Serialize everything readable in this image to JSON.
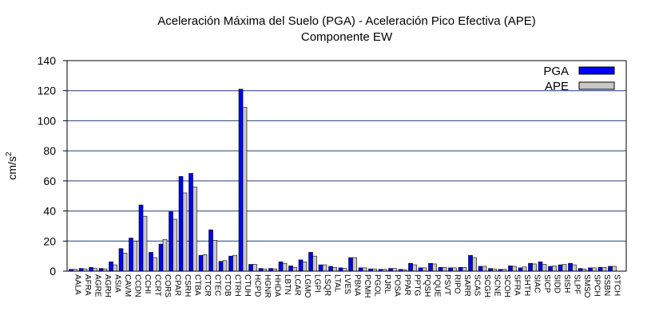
{
  "chart_data": {
    "type": "bar",
    "title": "Aceleración Máxima del Suelo (PGA) -  Aceleración Pico Efectiva (APE)",
    "subtitle": "Componente EW",
    "xlabel": "",
    "ylabel": "cm/s",
    "ylabel_superscript": "2",
    "ylim": [
      0,
      140
    ],
    "yticks": [
      0,
      20,
      40,
      60,
      80,
      100,
      120,
      140
    ],
    "grid": "horizontal",
    "legend_position": "top-right",
    "categories": [
      "AALA",
      "AFRA",
      "AGRE",
      "AGRH",
      "ASIA",
      "CAVM",
      "CCDN",
      "CCHI",
      "CCRT",
      "CORS",
      "CPAR",
      "CSRH",
      "CTBA",
      "CTCR",
      "CTEC",
      "CTOB",
      "CTRH",
      "CTUH",
      "HCPD",
      "HGNR",
      "HHDA",
      "LBTN",
      "LCAR",
      "LGMO",
      "LGPI",
      "LSQR",
      "LTAL",
      "LVES",
      "PBNA",
      "PCMH",
      "PGOL",
      "PJRL",
      "POSA",
      "PPAR",
      "PPTG",
      "PQSH",
      "PQUE",
      "PSVT",
      "RIPO",
      "SARR",
      "SCAS",
      "SCGH",
      "SCNE",
      "SCOH",
      "SFRA",
      "SHTH",
      "SIAC",
      "SICP",
      "SIDD",
      "SISH",
      "SLPF",
      "SMSO",
      "SPCH",
      "SSBN",
      "STCH"
    ],
    "series": [
      {
        "name": "PGA",
        "color": "#0000ff",
        "values": [
          1.2,
          1.8,
          2.5,
          1.8,
          6.2,
          15,
          22,
          44,
          12.5,
          18,
          39.5,
          63,
          65,
          10.5,
          27.5,
          6.5,
          10,
          121,
          4.5,
          1.8,
          1.8,
          6.2,
          3.5,
          7.5,
          12.5,
          4.2,
          3.2,
          2.2,
          9,
          2.2,
          1.5,
          1.2,
          1.8,
          1.2,
          5.2,
          2.2,
          5.2,
          2.5,
          2.2,
          2.5,
          10.5,
          3.2,
          1.8,
          1.2,
          3.5,
          2.2,
          5.2,
          6.2,
          3.2,
          4.2,
          5.2,
          1.8,
          2.2,
          2.5,
          3.2
        ]
      },
      {
        "name": "APE",
        "color": "#c8c8c8",
        "values": [
          1.2,
          1.5,
          1.8,
          1.5,
          4.2,
          12,
          20,
          36.5,
          9,
          21,
          34.5,
          52,
          56,
          11,
          20.5,
          7,
          10.5,
          109,
          4.5,
          1.5,
          1.5,
          5.2,
          2.5,
          6.2,
          10,
          4.2,
          2.5,
          1.8,
          9,
          2.2,
          1.5,
          1.2,
          1.8,
          1,
          4.2,
          2.2,
          4.8,
          2.5,
          2.2,
          2.5,
          9,
          3.2,
          1.5,
          1.2,
          3.2,
          2.8,
          4.8,
          4.5,
          3.5,
          4.5,
          4.2,
          1.5,
          2.2,
          2.5,
          3.2
        ]
      }
    ]
  }
}
